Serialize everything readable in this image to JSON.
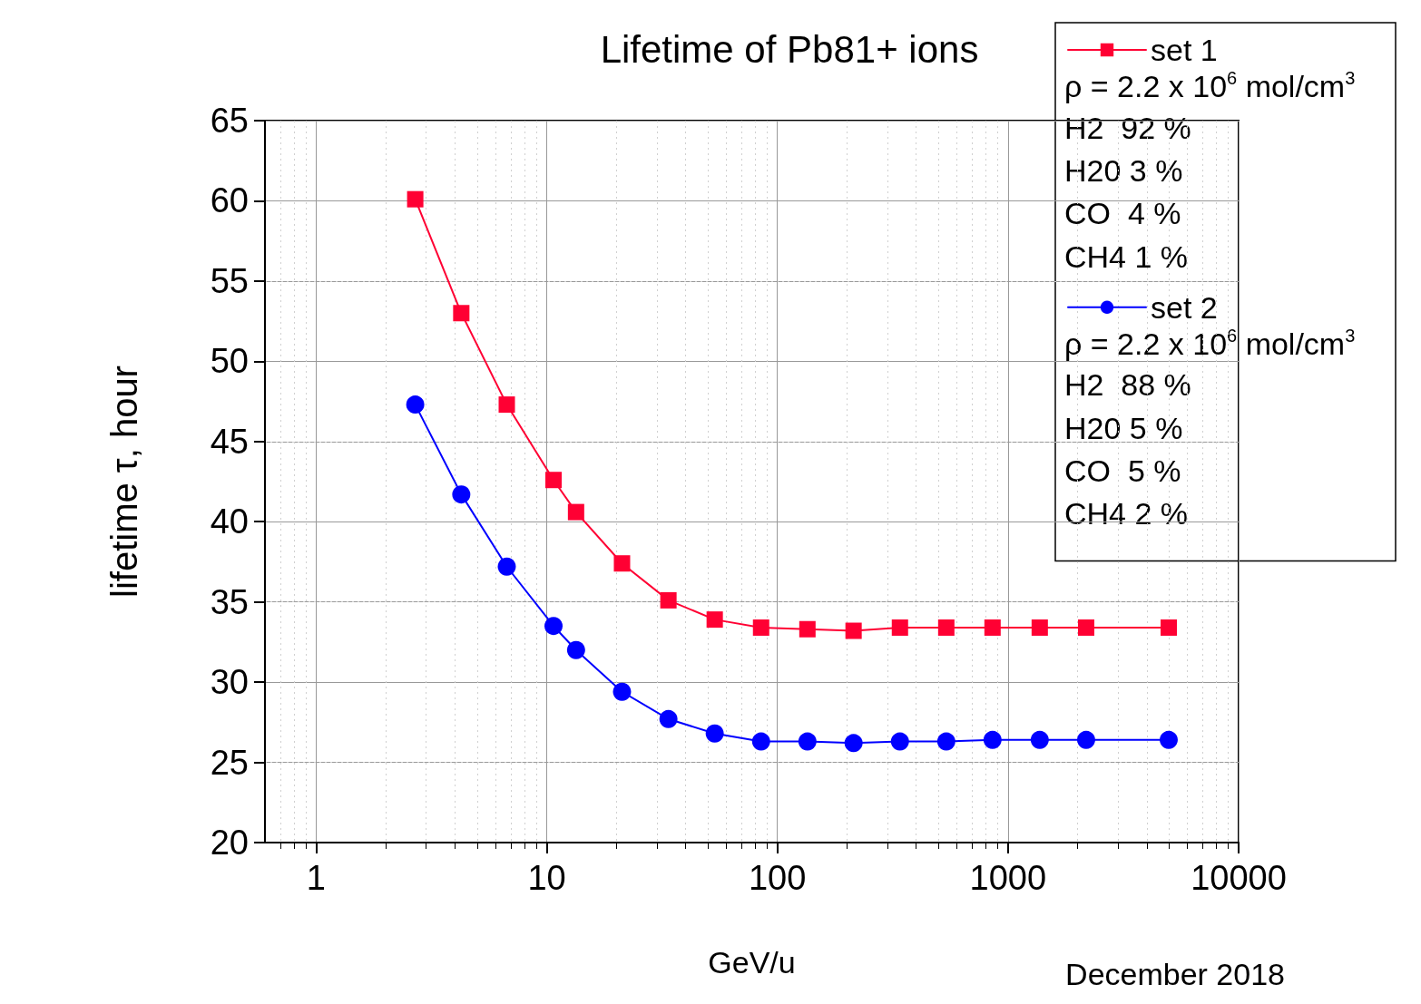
{
  "chart_data": {
    "type": "line",
    "title": "Lifetime of Pb81+ ions",
    "xlabel": "GeV/u",
    "ylabel": "lifetime τ, hour",
    "x": [
      2.69,
      4.26,
      6.71,
      10.7,
      13.4,
      21.2,
      33.7,
      53.5,
      85,
      135,
      214,
      340,
      540,
      857,
      1373,
      2182,
      4977
    ],
    "series": [
      {
        "name": "set 1",
        "color": "#ff0033",
        "marker": "square",
        "values": [
          60.1,
          53.0,
          47.3,
          42.6,
          40.6,
          37.4,
          35.1,
          33.9,
          33.4,
          33.3,
          33.2,
          33.4,
          33.4,
          33.4,
          33.4,
          33.4,
          33.4
        ]
      },
      {
        "name": "set 2",
        "color": "#0000ff",
        "marker": "circle",
        "values": [
          47.3,
          41.7,
          37.2,
          33.5,
          32.0,
          29.4,
          27.7,
          26.8,
          26.3,
          26.3,
          26.2,
          26.3,
          26.3,
          26.4,
          26.4,
          26.4,
          26.4
        ]
      }
    ],
    "annotations": [
      "ρ = 2.2 x 10$^{6}$ mol/cm$^{3}$",
      "H2  92 %",
      "H20 3 %",
      "CO  4 %",
      "CH4 1 %",
      "ρ = 2.2 x 10$^{6}$ mol/cm$^{3}$",
      "H2  88 %",
      "H20 5 %",
      "CO  5 %",
      "CH4 2 %",
      "December 2018"
    ],
    "log": "x",
    "xlim": [
      0.6,
      10000
    ],
    "xticks": [
      1,
      10,
      100,
      1000,
      10000
    ],
    "ylim": [
      20,
      65
    ],
    "yticks": [
      20,
      25,
      30,
      35,
      40,
      45,
      50,
      55,
      60,
      65
    ],
    "grid": true,
    "legend": "top right",
    "line_style": "solid"
  }
}
